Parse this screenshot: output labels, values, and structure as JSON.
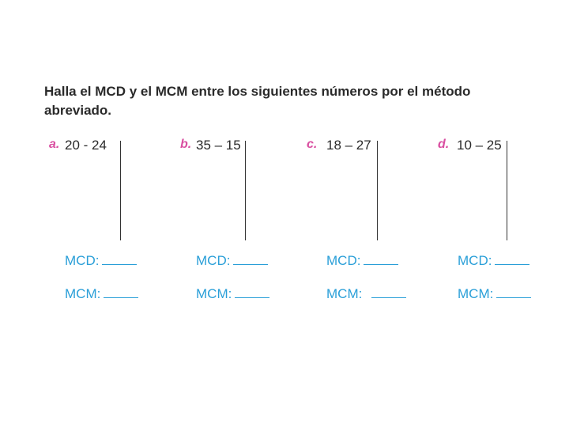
{
  "instruction": "Halla el MCD y el MCM entre los siguientes números por el método abreviado.",
  "exercises": [
    {
      "letter": "a.",
      "numbers": "20  - 24",
      "mcd_label": "MCD:",
      "mcm_label": "MCM:"
    },
    {
      "letter": "b.",
      "numbers": "35 – 15",
      "mcd_label": "MCD:",
      "mcm_label": "MCM:"
    },
    {
      "letter": "c.",
      "numbers": "18 – 27",
      "mcd_label": "MCD:",
      "mcm_label": "MCM:"
    },
    {
      "letter": "d.",
      "numbers": "10 – 25",
      "mcd_label": "MCD:",
      "mcm_label": "MCM:"
    }
  ],
  "colors": {
    "letter": "#d94fa1",
    "answer_labels": "#2a9fd8",
    "text": "#2a2a2a"
  }
}
